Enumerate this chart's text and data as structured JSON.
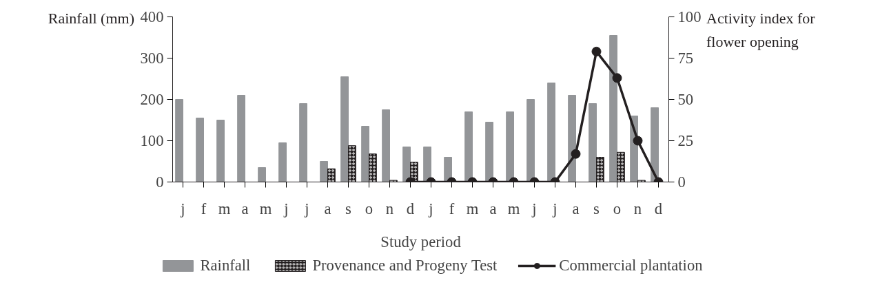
{
  "chart_data": {
    "type": "bar",
    "xlabel": "Study period",
    "ylabel": "Rainfall (mm)",
    "y2label": "Activity index for flower opening",
    "categories": [
      "j",
      "f",
      "m",
      "a",
      "m",
      "j",
      "j",
      "a",
      "s",
      "o",
      "n",
      "d",
      "j",
      "f",
      "m",
      "a",
      "m",
      "j",
      "j",
      "a",
      "s",
      "o",
      "n",
      "d"
    ],
    "series": [
      {
        "name": "Rainfall",
        "color": "#939598",
        "values": [
          200,
          155,
          150,
          210,
          35,
          95,
          190,
          50,
          255,
          135,
          175,
          85,
          85,
          60,
          170,
          145,
          170,
          200,
          240,
          210,
          190,
          355,
          160,
          180
        ]
      },
      {
        "name": "Provenance and Progeny Test",
        "axis": "y2",
        "color": "#231f20",
        "values": [
          null,
          null,
          null,
          null,
          null,
          null,
          null,
          8,
          22,
          17,
          1,
          12,
          null,
          null,
          null,
          null,
          null,
          null,
          null,
          null,
          15,
          18,
          1,
          null
        ]
      },
      {
        "name": "Commercial plantation",
        "type": "line",
        "axis": "y2",
        "color": "#231f20",
        "values": [
          null,
          null,
          null,
          null,
          null,
          null,
          null,
          null,
          null,
          null,
          null,
          0,
          0,
          0,
          0,
          0,
          0,
          0,
          0,
          17,
          79,
          63,
          25,
          0
        ]
      }
    ],
    "ylim": [
      0,
      400
    ],
    "yticks": [
      0,
      100,
      200,
      300,
      400
    ],
    "y2lim": [
      0,
      100
    ],
    "y2ticks": [
      0,
      25,
      50,
      75,
      100
    ],
    "grid": false,
    "legend": "bottom",
    "marker": "circle",
    "line_style": "solid"
  }
}
